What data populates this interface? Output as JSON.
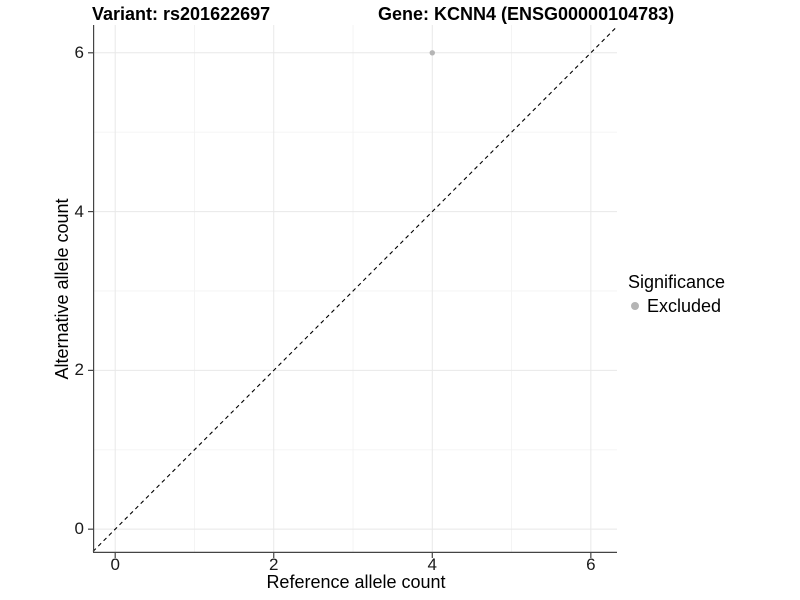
{
  "chart_data": {
    "type": "scatter",
    "title_left": "Variant: rs201622697",
    "title_right": "Gene: KCNN4 (ENSG00000104783)",
    "xlabel": "Reference allele count",
    "ylabel": "Alternative allele count",
    "xlim": [
      -0.28,
      6.33
    ],
    "ylim": [
      -0.3,
      6.35
    ],
    "x_ticks": [
      0,
      2,
      4,
      6
    ],
    "y_ticks": [
      0,
      2,
      4,
      6
    ],
    "x_minor_ticks": [
      1,
      3,
      5
    ],
    "y_minor_ticks": [
      1,
      3,
      5
    ],
    "grid": "major and minor gridlines, white panel background",
    "series": [
      {
        "name": "Excluded",
        "color": "#b5b5b5",
        "points": [
          {
            "x": 4,
            "y": 6
          }
        ]
      }
    ],
    "reference_line": {
      "type": "identity",
      "style": "dashed",
      "from": [
        -0.28,
        -0.28
      ],
      "to": [
        6.33,
        6.33
      ],
      "color": "#000000"
    },
    "legend": {
      "title": "Significance",
      "position": "right",
      "entries": [
        {
          "label": "Excluded",
          "color": "#b5b5b5"
        }
      ]
    },
    "colors": {
      "axis_line": "#444444",
      "tick_mark": "#444444",
      "grid_major": "#e8e8e8",
      "grid_minor": "#f3f3f3",
      "point": "#b5b5b5",
      "background": "#ffffff"
    }
  }
}
